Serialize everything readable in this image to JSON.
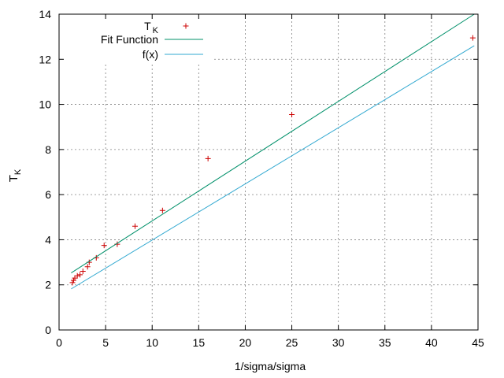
{
  "chart_data": {
    "type": "scatter",
    "title": "",
    "xlabel": "1/sigma/sigma",
    "ylabel": "T",
    "ylabel_sub": "K",
    "xlim": [
      0,
      45
    ],
    "ylim": [
      0,
      14
    ],
    "xticks": [
      0,
      5,
      10,
      15,
      20,
      25,
      30,
      35,
      40,
      45
    ],
    "yticks": [
      0,
      2,
      4,
      6,
      8,
      10,
      12,
      14
    ],
    "grid": true,
    "legend_position": "top-left",
    "series": [
      {
        "name": "T",
        "name_sub": "K",
        "kind": "points",
        "marker": "plus",
        "color": "#cc0000",
        "x": [
          1.44,
          1.56,
          1.69,
          1.96,
          2.25,
          2.56,
          3.06,
          3.24,
          4.0,
          4.84,
          6.25,
          8.16,
          11.11,
          16.0,
          25.0,
          44.44
        ],
        "y": [
          2.1,
          2.2,
          2.3,
          2.4,
          2.45,
          2.6,
          2.8,
          3.0,
          3.2,
          3.75,
          3.8,
          4.6,
          5.3,
          7.6,
          9.55,
          12.95
        ]
      },
      {
        "name": "Fit Function",
        "kind": "line",
        "color": "#00906a",
        "x": [
          1.3,
          44.6
        ],
        "y": [
          2.53,
          14.0
        ]
      },
      {
        "name": "f(x)",
        "kind": "line",
        "color": "#30a8d0",
        "x": [
          1.3,
          44.6
        ],
        "y": [
          1.82,
          12.6
        ]
      }
    ]
  }
}
